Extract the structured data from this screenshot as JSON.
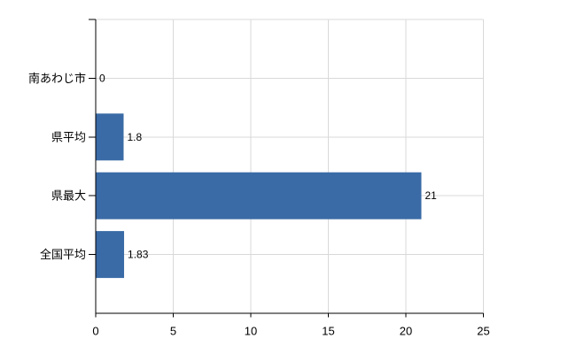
{
  "chart_data": {
    "type": "bar",
    "orientation": "horizontal",
    "title": "",
    "xlabel": "",
    "ylabel": "",
    "categories": [
      "南あわじ市",
      "県平均",
      "県最大",
      "全国平均"
    ],
    "values": [
      0,
      1.8,
      21,
      1.83
    ],
    "value_labels": [
      "0",
      "1.8",
      "21",
      "1.83"
    ],
    "xlim": [
      0,
      25
    ],
    "xticks": [
      0,
      5,
      10,
      15,
      20,
      25
    ],
    "xtick_labels": [
      "0",
      "5",
      "10",
      "15",
      "20",
      "25"
    ],
    "grid": true,
    "legend": false,
    "colors": {
      "bar": "#3a6ba6",
      "grid": "#d9d9d9",
      "axis": "#000000",
      "text": "#000000",
      "background": "#ffffff"
    }
  }
}
